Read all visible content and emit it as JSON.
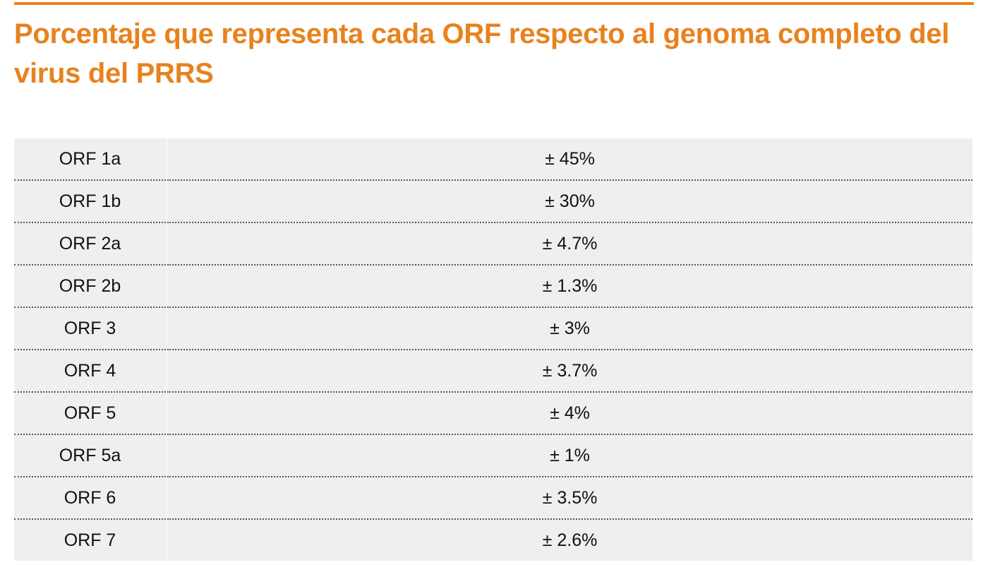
{
  "header": {
    "title": "Porcentaje que representa cada ORF respecto al genoma completo del virus del PRRS"
  },
  "table": {
    "rows": [
      [
        "ORF 1a",
        "± 45%"
      ],
      [
        "ORF 1b",
        "± 30%"
      ],
      [
        "ORF 2a",
        "± 4.7%"
      ],
      [
        "ORF 2b",
        "± 1.3%"
      ],
      [
        "ORF 3",
        "± 3%"
      ],
      [
        "ORF 4",
        "± 3.7%"
      ],
      [
        "ORF 5",
        "± 4%"
      ],
      [
        "ORF 5a",
        "± 1%"
      ],
      [
        "ORF 6",
        "± 3.5%"
      ],
      [
        "ORF 7",
        "± 2.6%"
      ]
    ]
  }
}
